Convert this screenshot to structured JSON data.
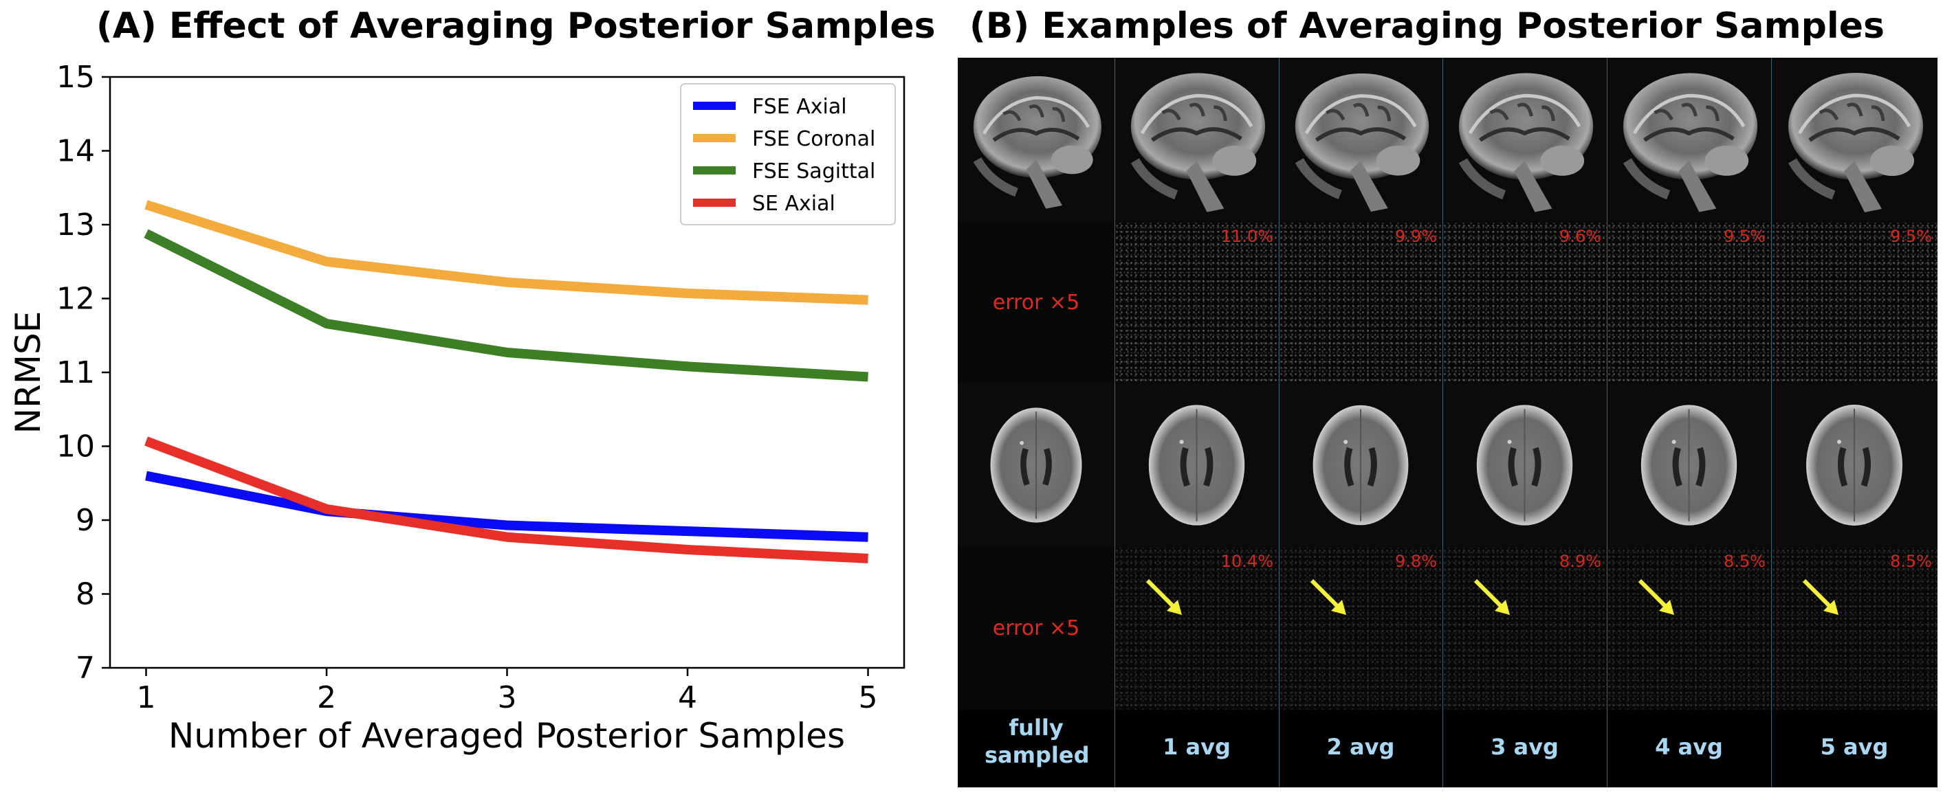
{
  "panel_a_title": "(A) Effect of Averaging Posterior Samples",
  "panel_b_title": "(B)  Examples of Averaging Posterior Samples",
  "chart_data": {
    "type": "line",
    "title": "(A) Effect of Averaging Posterior Samples",
    "xlabel": "Number of Averaged Posterior Samples",
    "ylabel": "NRMSE",
    "x": [
      1,
      2,
      3,
      4,
      5
    ],
    "xticks": [
      "1",
      "2",
      "3",
      "4",
      "5"
    ],
    "yticks": [
      "7",
      "8",
      "9",
      "10",
      "11",
      "12",
      "13",
      "14",
      "15"
    ],
    "xlim": [
      0.8,
      5.2
    ],
    "ylim": [
      7,
      15
    ],
    "legend_position": "top-right",
    "series": [
      {
        "name": "FSE Axial",
        "color": "#0a0af5",
        "values": [
          9.6,
          9.12,
          8.93,
          8.85,
          8.77
        ]
      },
      {
        "name": "FSE Coronal",
        "color": "#f2ab3c",
        "values": [
          13.27,
          12.5,
          12.22,
          12.07,
          11.98
        ]
      },
      {
        "name": "FSE Sagittal",
        "color": "#3c7f25",
        "values": [
          12.88,
          11.66,
          11.27,
          11.08,
          10.94
        ]
      },
      {
        "name": "SE Axial",
        "color": "#e8302a",
        "values": [
          10.07,
          9.15,
          8.77,
          8.6,
          8.48
        ]
      }
    ]
  },
  "panel_b": {
    "columns": [
      "fully sampled",
      "1 avg",
      "2 avg",
      "3 avg",
      "4 avg",
      "5 avg"
    ],
    "error_label": "error ×5",
    "sagittal_errors": [
      "11.0%",
      "9.9%",
      "9.6%",
      "9.5%",
      "9.5%"
    ],
    "axial_errors": [
      "10.4%",
      "9.8%",
      "8.9%",
      "8.5%",
      "8.5%"
    ],
    "arrow_color": "#f5f03a",
    "error_text_color": "#e02a20",
    "footer_text_color": "#a9d6f0"
  }
}
